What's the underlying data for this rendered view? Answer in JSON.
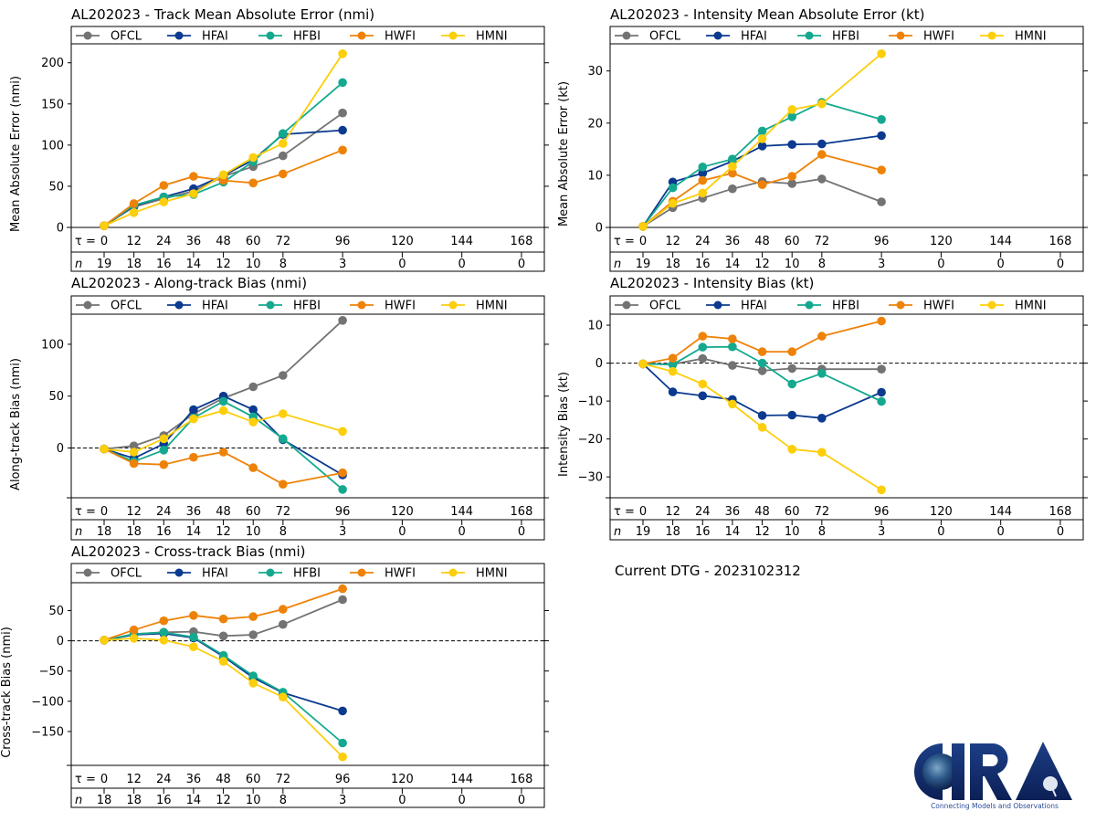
{
  "page": {
    "current_dtg_label": "Current DTG - 2023102312",
    "logo": {
      "name": "CIRA",
      "tagline": "Connecting Models and Observations"
    }
  },
  "legend": {
    "entries": [
      {
        "name": "OFCL",
        "color": "#737373"
      },
      {
        "name": "HFAI",
        "color": "#0b3a8f"
      },
      {
        "name": "HFBI",
        "color": "#14a98f"
      },
      {
        "name": "HWFI",
        "color": "#ee8208"
      },
      {
        "name": "HMNI",
        "color": "#fcce0b"
      }
    ]
  },
  "chart_data": [
    {
      "id": "track-mae",
      "type": "line",
      "title": "AL202023 - Track Mean Absolute Error (nmi)",
      "ylabel": "Mean Absolute Error (nmi)",
      "xlabel": "",
      "ylim": [
        0,
        223
      ],
      "yticks": [
        0,
        50,
        100,
        150,
        200
      ],
      "zero_line": false,
      "tau_ticks": [
        0,
        12,
        24,
        36,
        48,
        60,
        72,
        96,
        120,
        144,
        168
      ],
      "n_counts": [
        19,
        18,
        16,
        14,
        12,
        10,
        8,
        3,
        0,
        0,
        0
      ],
      "x": [
        0,
        12,
        24,
        36,
        48,
        60,
        72,
        96
      ],
      "legend_placement": "top",
      "series": [
        {
          "name": "OFCL",
          "values": [
            2,
            25,
            35,
            44,
            62,
            74,
            87,
            139
          ]
        },
        {
          "name": "HFAI",
          "values": [
            2,
            26,
            37,
            47,
            63,
            82,
            113,
            118
          ]
        },
        {
          "name": "HFBI",
          "values": [
            2,
            27,
            37,
            40,
            55,
            80,
            114,
            176
          ]
        },
        {
          "name": "HWFI",
          "values": [
            2,
            29,
            51,
            62,
            57,
            54,
            65,
            94
          ]
        },
        {
          "name": "HMNI",
          "values": [
            2,
            18,
            31,
            41,
            64,
            85,
            102,
            211
          ]
        }
      ]
    },
    {
      "id": "intensity-mae",
      "type": "line",
      "title": "AL202023 - Intensity Mean Absolute Error (kt)",
      "ylabel": "Mean Absolute Error (kt)",
      "xlabel": "",
      "ylim": [
        0,
        35.2
      ],
      "yticks": [
        0,
        10,
        20,
        30
      ],
      "zero_line": false,
      "tau_ticks": [
        0,
        12,
        24,
        36,
        48,
        60,
        72,
        96,
        120,
        144,
        168
      ],
      "n_counts": [
        19,
        18,
        16,
        14,
        12,
        10,
        8,
        3,
        0,
        0,
        0
      ],
      "x": [
        0,
        12,
        24,
        36,
        48,
        60,
        72,
        96
      ],
      "legend_placement": "top",
      "series": [
        {
          "name": "OFCL",
          "values": [
            0.2,
            3.8,
            5.6,
            7.4,
            8.8,
            8.4,
            9.3,
            4.9
          ]
        },
        {
          "name": "HFAI",
          "values": [
            0.2,
            8.7,
            10.4,
            12.7,
            15.6,
            15.9,
            16.0,
            17.6
          ]
        },
        {
          "name": "HFBI",
          "values": [
            0.2,
            7.6,
            11.6,
            13.1,
            18.5,
            21.2,
            24.0,
            20.7
          ]
        },
        {
          "name": "HWFI",
          "values": [
            0.2,
            5.0,
            9.0,
            10.4,
            8.2,
            9.8,
            14.0,
            11.0
          ]
        },
        {
          "name": "HMNI",
          "values": [
            0.2,
            4.6,
            6.6,
            11.7,
            17.0,
            22.6,
            23.7,
            33.3
          ]
        }
      ]
    },
    {
      "id": "along-track-bias",
      "type": "line",
      "title": "AL202023 - Along-track Bias (nmi)",
      "ylabel": "Along-track Bias (nmi)",
      "xlabel": "",
      "ylim": [
        -48,
        129
      ],
      "yticks": [
        0,
        50,
        100
      ],
      "zero_line": true,
      "tau_ticks": [
        0,
        12,
        24,
        36,
        48,
        60,
        72,
        96,
        120,
        144,
        168
      ],
      "n_counts": [
        18,
        18,
        16,
        14,
        12,
        10,
        8,
        3,
        0,
        0,
        0
      ],
      "x": [
        0,
        12,
        24,
        36,
        48,
        60,
        72,
        96
      ],
      "legend_placement": "top",
      "series": [
        {
          "name": "OFCL",
          "values": [
            -1,
            2,
            12,
            33,
            48,
            59,
            70,
            123
          ]
        },
        {
          "name": "HFAI",
          "values": [
            -1,
            -10,
            4,
            37,
            50,
            37,
            8,
            -26
          ]
        },
        {
          "name": "HFBI",
          "values": [
            -1,
            -13,
            -2,
            29,
            45,
            30,
            9,
            -40
          ]
        },
        {
          "name": "HWFI",
          "values": [
            -1,
            -15,
            -16,
            -9,
            -4,
            -19,
            -35,
            -24
          ]
        },
        {
          "name": "HMNI",
          "values": [
            -1,
            -4,
            9,
            28,
            36,
            25,
            33,
            16
          ]
        }
      ]
    },
    {
      "id": "intensity-bias",
      "type": "line",
      "title": "AL202023 - Intensity Bias (kt)",
      "ylabel": "Intensity Bias (kt)",
      "xlabel": "",
      "ylim": [
        -35.5,
        12.9
      ],
      "yticks": [
        -30,
        -20,
        -10,
        0,
        10
      ],
      "zero_line": true,
      "tau_ticks": [
        0,
        12,
        24,
        36,
        48,
        60,
        72,
        96,
        120,
        144,
        168
      ],
      "n_counts": [
        19,
        18,
        16,
        14,
        12,
        10,
        8,
        3,
        0,
        0,
        0
      ],
      "x": [
        0,
        12,
        24,
        36,
        48,
        60,
        72,
        96
      ],
      "legend_placement": "top",
      "series": [
        {
          "name": "OFCL",
          "values": [
            -0.2,
            -0.3,
            1.2,
            -0.6,
            -2.0,
            -1.4,
            -1.6,
            -1.6
          ]
        },
        {
          "name": "HFAI",
          "values": [
            -0.2,
            -7.6,
            -8.6,
            -9.6,
            -13.8,
            -13.7,
            -14.5,
            -7.7
          ]
        },
        {
          "name": "HFBI",
          "values": [
            -0.2,
            -0.4,
            4.2,
            4.3,
            0.0,
            -5.5,
            -2.7,
            -10.1
          ]
        },
        {
          "name": "HWFI",
          "values": [
            -0.2,
            1.3,
            7.1,
            6.4,
            3.0,
            3.0,
            7.1,
            11.1
          ]
        },
        {
          "name": "HMNI",
          "values": [
            -0.2,
            -2.2,
            -5.5,
            -10.8,
            -16.9,
            -22.7,
            -23.5,
            -33.4
          ]
        }
      ]
    },
    {
      "id": "cross-track-bias",
      "type": "line",
      "title": "AL202023 - Cross-track Bias (nmi)",
      "ylabel": "Cross-track Bias (nmi)",
      "xlabel": "",
      "ylim": [
        -206,
        96
      ],
      "yticks": [
        -150,
        -100,
        -50,
        0,
        50
      ],
      "zero_line": true,
      "tau_ticks": [
        0,
        12,
        24,
        36,
        48,
        60,
        72,
        96,
        120,
        144,
        168
      ],
      "n_counts": [
        18,
        18,
        16,
        14,
        12,
        10,
        8,
        3,
        0,
        0,
        0
      ],
      "x": [
        0,
        12,
        24,
        36,
        48,
        60,
        72,
        96
      ],
      "legend_placement": "top",
      "series": [
        {
          "name": "OFCL",
          "values": [
            1,
            11,
            14,
            15,
            8,
            10,
            27,
            68
          ]
        },
        {
          "name": "HFAI",
          "values": [
            1,
            10,
            12,
            5,
            -26,
            -61,
            -86,
            -116
          ]
        },
        {
          "name": "HFBI",
          "values": [
            1,
            11,
            14,
            6,
            -24,
            -58,
            -85,
            -169
          ]
        },
        {
          "name": "HWFI",
          "values": [
            1,
            18,
            33,
            42,
            36,
            40,
            52,
            86
          ]
        },
        {
          "name": "HMNI",
          "values": [
            1,
            4,
            1,
            -10,
            -34,
            -70,
            -93,
            -192
          ]
        }
      ]
    }
  ]
}
